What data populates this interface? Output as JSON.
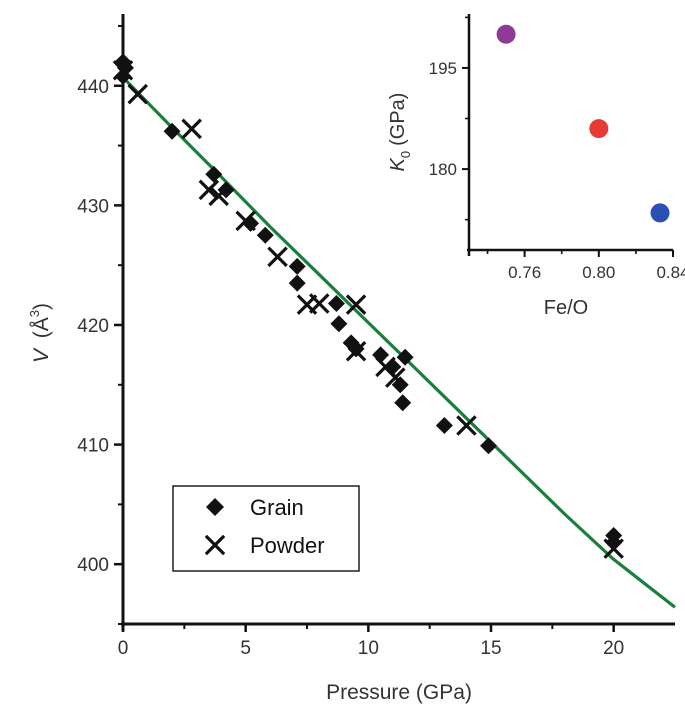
{
  "chart_data": [
    {
      "type": "scatter",
      "xlabel": "Pressure (GPa)",
      "ylabel": "V (Å³)",
      "ylabel_var": "V",
      "ylabel_unit": "(Å",
      "ylabel_sup": "3",
      "ylabel_close": ")",
      "xlim": [
        0,
        22.5
      ],
      "ylim": [
        395,
        446
      ],
      "xticks": [
        0,
        5,
        10,
        15,
        20
      ],
      "yticks": [
        400,
        410,
        420,
        430,
        440
      ],
      "legend": {
        "position": "bottom-left",
        "entries": [
          "Grain",
          "Powder"
        ]
      },
      "colors": {
        "fit": "#1a7f3c",
        "markers": "#111111",
        "axes": "#111111"
      },
      "series": [
        {
          "name": "Grain",
          "marker": "diamond",
          "points": [
            [
              0.0,
              442.0
            ],
            [
              0.1,
              441.5
            ],
            [
              0.0,
              440.8
            ],
            [
              2.0,
              436.2
            ],
            [
              3.7,
              432.6
            ],
            [
              4.2,
              431.3
            ],
            [
              5.2,
              428.5
            ],
            [
              5.8,
              427.5
            ],
            [
              7.1,
              424.9
            ],
            [
              7.1,
              423.5
            ],
            [
              8.7,
              421.8
            ],
            [
              8.8,
              420.1
            ],
            [
              9.3,
              418.5
            ],
            [
              9.5,
              418.0
            ],
            [
              10.5,
              417.5
            ],
            [
              11.0,
              416.5
            ],
            [
              11.5,
              417.3
            ],
            [
              11.3,
              415.0
            ],
            [
              11.4,
              413.5
            ],
            [
              13.1,
              411.6
            ],
            [
              14.9,
              409.9
            ],
            [
              20.0,
              402.4
            ],
            [
              20.0,
              401.8
            ]
          ]
        },
        {
          "name": "Powder",
          "marker": "cross",
          "points": [
            [
              0.0,
              441.3
            ],
            [
              0.6,
              439.3
            ],
            [
              2.8,
              436.4
            ],
            [
              3.5,
              431.3
            ],
            [
              3.9,
              430.8
            ],
            [
              5.0,
              428.7
            ],
            [
              6.3,
              425.7
            ],
            [
              7.5,
              421.7
            ],
            [
              8.0,
              421.8
            ],
            [
              9.5,
              421.7
            ],
            [
              9.5,
              417.8
            ],
            [
              10.7,
              416.5
            ],
            [
              11.1,
              415.6
            ],
            [
              14.0,
              411.6
            ],
            [
              20.0,
              401.3
            ]
          ]
        },
        {
          "name": "fit",
          "line": true,
          "points": [
            [
              0,
              440.7
            ],
            [
              2,
              436.5
            ],
            [
              4,
              432.4
            ],
            [
              6,
              428.2
            ],
            [
              8,
              424.2
            ],
            [
              10,
              420.2
            ],
            [
              12,
              416.2
            ],
            [
              14,
              412.2
            ],
            [
              16,
              408.2
            ],
            [
              18,
              404.2
            ],
            [
              20,
              400.4
            ],
            [
              22.5,
              396.4
            ]
          ]
        }
      ]
    },
    {
      "type": "scatter",
      "xlabel": "Fe/O",
      "ylabel": "K0 (GPa)",
      "ylabel_var": "K",
      "ylabel_sub": "0",
      "ylabel_unit": "(GPa)",
      "xlim": [
        0.73,
        0.84
      ],
      "ylim": [
        168,
        203
      ],
      "xticks": [
        "0.76",
        "0.80",
        "0.84"
      ],
      "xtick_values": [
        0.76,
        0.8,
        0.84
      ],
      "yticks": [
        "180",
        "195"
      ],
      "ytick_values": [
        180,
        195
      ],
      "series": [
        {
          "points": [
            {
              "x": 0.75,
              "y": 200,
              "color": "#8e3a96"
            },
            {
              "x": 0.8,
              "y": 186,
              "color": "#e83a34"
            },
            {
              "x": 0.833,
              "y": 173.5,
              "color": "#2a4fb5"
            }
          ]
        }
      ]
    }
  ]
}
